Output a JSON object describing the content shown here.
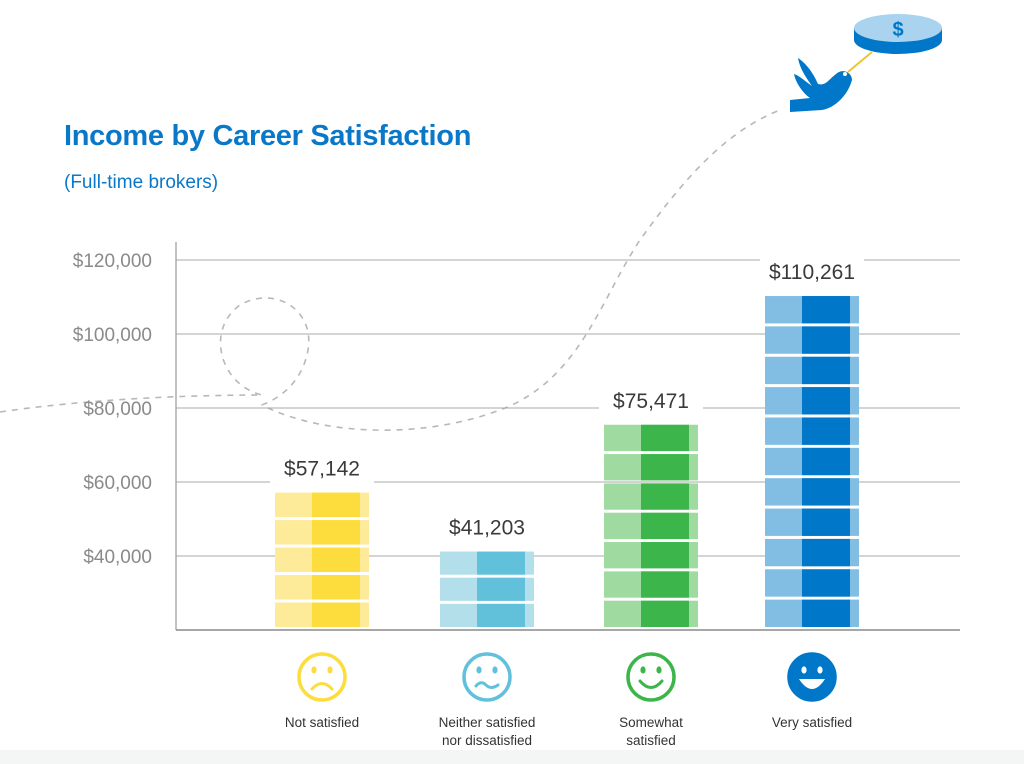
{
  "chart_data": {
    "type": "bar",
    "title": "Income by Career Satisfaction",
    "subtitle": "(Full-time brokers)",
    "xlabel": "",
    "ylabel": "",
    "ylim": [
      20000,
      125000
    ],
    "yticks": [
      40000,
      60000,
      80000,
      100000,
      120000
    ],
    "ytick_labels": [
      "$40,000",
      "$60,000",
      "$80,000",
      "$100,000",
      "$120,000"
    ],
    "grid": true,
    "categories": [
      "Not satisfied",
      "Neither satisfied nor dissatisfied",
      "Somewhat satisfied",
      "Very satisfied"
    ],
    "category_lines": [
      [
        "Not satisfied"
      ],
      [
        "Neither satisfied",
        "nor dissatisfied"
      ],
      [
        "Somewhat",
        "satisfied"
      ],
      [
        "Very satisfied"
      ]
    ],
    "values": [
      57142,
      41203,
      75471,
      110261
    ],
    "value_labels": [
      "$57,142",
      "$41,203",
      "$75,471",
      "$110,261"
    ],
    "colors": [
      {
        "light": "#fdeb9a",
        "dark": "#fddd3e",
        "face": "sad"
      },
      {
        "light": "#b2dfea",
        "dark": "#62c1da",
        "face": "wavy"
      },
      {
        "light": "#9fdba0",
        "dark": "#3cb54a",
        "face": "smile"
      },
      {
        "light": "#82bde3",
        "dark": "#0077c8",
        "face": "grin"
      }
    ]
  }
}
